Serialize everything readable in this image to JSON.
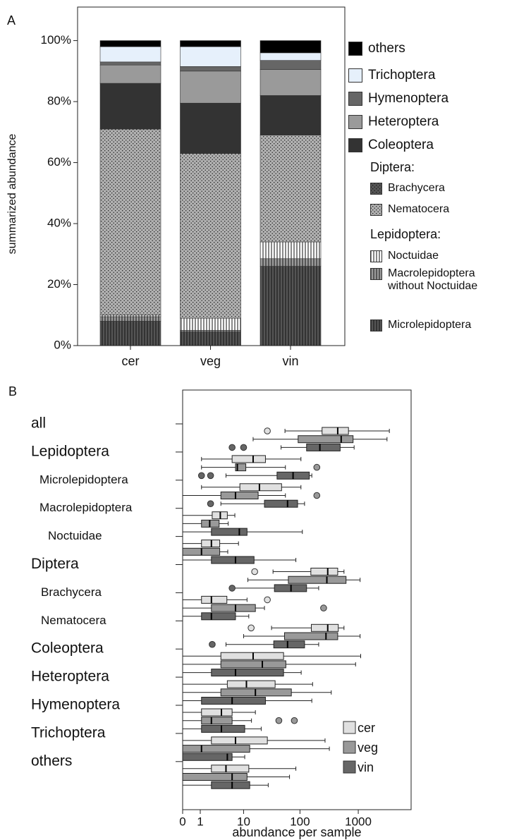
{
  "chart_data": [
    {
      "type": "stacked_bar",
      "panel_label": "A",
      "ylabel": "summarized abundance",
      "categories": [
        "cer",
        "veg",
        "vin"
      ],
      "ylim": [
        0,
        111
      ],
      "yticks": [
        {
          "value": 0,
          "label": "0%"
        },
        {
          "value": 20,
          "label": "20%"
        },
        {
          "value": 40,
          "label": "40%"
        },
        {
          "value": 60,
          "label": "60%"
        },
        {
          "value": 80,
          "label": "80%"
        },
        {
          "value": 100,
          "label": "100%"
        }
      ],
      "legend_headings": [
        "Diptera:",
        "Lepidoptera:"
      ],
      "series": [
        {
          "name": "Microlepidoptera",
          "color": "#555555",
          "pattern": "vlines",
          "values": [
            8,
            4.5,
            26
          ]
        },
        {
          "name": "Macrolepidoptera without Noctuidae",
          "color": "#9a9a9a",
          "pattern": "vlines",
          "values": [
            1.5,
            0.5,
            2.5
          ]
        },
        {
          "name": "Noctuidae",
          "color": "#ffffff",
          "pattern": "vlines",
          "values": [
            0.5,
            4,
            5.5
          ]
        },
        {
          "name": "Nematocera",
          "color": "#b0b0b0",
          "pattern": "dots",
          "values": [
            61,
            54,
            35
          ]
        },
        {
          "name": "Brachycera",
          "color": "#555555",
          "pattern": "dots",
          "values": [
            0,
            0,
            0
          ]
        },
        {
          "name": "Coleoptera",
          "color": "#333333",
          "pattern": null,
          "values": [
            15,
            16.5,
            13
          ]
        },
        {
          "name": "Heteroptera",
          "color": "#9a9a9a",
          "pattern": null,
          "values": [
            6,
            10.5,
            8.5
          ]
        },
        {
          "name": "Hymenoptera",
          "color": "#666666",
          "pattern": null,
          "values": [
            1,
            1.5,
            3
          ]
        },
        {
          "name": "Trichoptera",
          "color": "#e6f0fb",
          "pattern": null,
          "values": [
            5,
            6.5,
            2.5
          ]
        },
        {
          "name": "others",
          "color": "#000000",
          "pattern": null,
          "values": [
            2,
            2,
            4
          ]
        }
      ]
    },
    {
      "type": "box",
      "panel_label": "B",
      "xlabel": "abundance per sample",
      "xscale": "log1p",
      "xlim": [
        0,
        8000
      ],
      "xticks": [
        0,
        1,
        10,
        100,
        1000
      ],
      "legend": "lower right",
      "categories": [
        "all",
        "Lepidoptera",
        "Microlepidoptera",
        "Macrolepidoptera",
        "Noctuidae",
        "Diptera",
        "Brachycera",
        "Nematocera",
        "Coleoptera",
        "Heteroptera",
        "Hymenoptera",
        "Trichoptera",
        "others"
      ],
      "series": [
        {
          "name": "cer",
          "color": "#e0e0e0",
          "boxes": [
            {
              "whislo": 55,
              "q1": 240,
              "med": 445,
              "q3": 680,
              "whishi": 3400,
              "fliers": [
                27
              ]
            },
            {
              "whislo": 1.1,
              "q1": 6,
              "med": 15,
              "q3": 25,
              "whishi": 104,
              "fliers": []
            },
            {
              "whislo": 1.1,
              "q1": 8.5,
              "med": 19.5,
              "q3": 48,
              "whishi": 104,
              "fliers": []
            },
            {
              "whislo": 0,
              "q1": 2.2,
              "med": 3.4,
              "q3": 4.8,
              "whishi": 6.8,
              "fliers": []
            },
            {
              "whislo": 0,
              "q1": 1.1,
              "med": 2.1,
              "q3": 3.3,
              "whishi": 8,
              "fliers": []
            },
            {
              "whislo": 34,
              "q1": 154,
              "med": 300,
              "q3": 445,
              "whishi": 570,
              "fliers": [
                16
              ]
            },
            {
              "whislo": 0,
              "q1": 1.1,
              "med": 2.1,
              "q3": 4.7,
              "whishi": 11.6,
              "fliers": [
                27
              ]
            },
            {
              "whislo": 32,
              "q1": 157,
              "med": 300,
              "q3": 455,
              "whishi": 570,
              "fliers": [
                13.8
              ]
            },
            {
              "whislo": 0,
              "q1": 3.5,
              "med": 15,
              "q3": 52,
              "whishi": 1100,
              "fliers": []
            },
            {
              "whislo": 0,
              "q1": 4.8,
              "med": 11.3,
              "q3": 37,
              "whishi": 165,
              "fliers": []
            },
            {
              "whislo": 0,
              "q1": 1.1,
              "med": 3.6,
              "q3": 6,
              "whishi": 16.5,
              "fliers": []
            },
            {
              "whislo": 0,
              "q1": 2.1,
              "med": 7,
              "q3": 27,
              "whishi": 270,
              "fliers": []
            },
            {
              "whislo": 0,
              "q1": 2.1,
              "med": 4.5,
              "q3": 12.5,
              "whishi": 85,
              "fliers": []
            }
          ]
        },
        {
          "name": "veg",
          "color": "#999999",
          "boxes": [
            {
              "whislo": 15,
              "q1": 93,
              "med": 510,
              "q3": 815,
              "whishi": 3100,
              "fliers": []
            },
            {
              "whislo": 1.1,
              "q1": 7,
              "med": 7.6,
              "q3": 11,
              "whishi": 56,
              "fliers": [
                195
              ]
            },
            {
              "whislo": 0,
              "q1": 3.5,
              "med": 7,
              "q3": 18.5,
              "whishi": 56,
              "fliers": [
                195
              ]
            },
            {
              "whislo": 0,
              "q1": 1.1,
              "med": 1.9,
              "q3": 3.2,
              "whishi": 5,
              "fliers": []
            },
            {
              "whislo": 0,
              "q1": 0,
              "med": 1.1,
              "q3": 3.3,
              "whishi": 4.9,
              "fliers": []
            },
            {
              "whislo": 12,
              "q1": 63,
              "med": 290,
              "q3": 618,
              "whishi": 1075,
              "fliers": []
            },
            {
              "whislo": 0,
              "q1": 2.1,
              "med": 7,
              "q3": 16.5,
              "whishi": 24,
              "fliers": [
                255
              ]
            },
            {
              "whislo": 10,
              "q1": 54,
              "med": 280,
              "q3": 445,
              "whishi": 1075,
              "fliers": []
            },
            {
              "whislo": 0,
              "q1": 3.5,
              "med": 22,
              "q3": 57,
              "whishi": 900,
              "fliers": []
            },
            {
              "whislo": 0,
              "q1": 3.5,
              "med": 16.5,
              "q3": 71,
              "whishi": 345,
              "fliers": []
            },
            {
              "whislo": 0,
              "q1": 1.1,
              "med": 2.1,
              "q3": 6,
              "whishi": 14,
              "fliers": [
                43,
                80
              ]
            },
            {
              "whislo": 0,
              "q1": 0,
              "med": 1.1,
              "q3": 13,
              "whishi": 320,
              "fliers": []
            },
            {
              "whislo": 0,
              "q1": 0,
              "med": 6,
              "q3": 11.6,
              "whishi": 66,
              "fliers": []
            }
          ]
        },
        {
          "name": "vin",
          "color": "#666666",
          "boxes": [
            {
              "whislo": 47,
              "q1": 130,
              "med": 220,
              "q3": 490,
              "whishi": 850,
              "fliers": [
                6,
                10
              ]
            },
            {
              "whislo": 4.5,
              "q1": 40,
              "med": 76,
              "q3": 145,
              "whishi": 160,
              "fliers": [
                1.1,
                2
              ]
            },
            {
              "whislo": 3.5,
              "q1": 24,
              "med": 61,
              "q3": 91,
              "whishi": 120,
              "fliers": [
                2
              ]
            },
            {
              "whislo": 0,
              "q1": 2.1,
              "med": 8.3,
              "q3": 11.6,
              "whishi": 110,
              "fliers": []
            },
            {
              "whislo": 0,
              "q1": 2.1,
              "med": 7,
              "q3": 15.6,
              "whishi": 85,
              "fliers": []
            },
            {
              "whislo": 6.5,
              "q1": 36,
              "med": 70,
              "q3": 130,
              "whishi": 210,
              "fliers": [
                6
              ]
            },
            {
              "whislo": 0,
              "q1": 1.1,
              "med": 2.1,
              "q3": 7,
              "whishi": 12.5,
              "fliers": []
            },
            {
              "whislo": 4.5,
              "q1": 35,
              "med": 61,
              "q3": 120,
              "whishi": 210,
              "fliers": [
                2.2
              ]
            },
            {
              "whislo": 0,
              "q1": 2.1,
              "med": 7,
              "q3": 52,
              "whishi": 105,
              "fliers": []
            },
            {
              "whislo": 0,
              "q1": 1.1,
              "med": 6,
              "q3": 25,
              "whishi": 160,
              "fliers": []
            },
            {
              "whislo": 0,
              "q1": 1.1,
              "med": 3.6,
              "q3": 10.5,
              "whishi": 21,
              "fliers": []
            },
            {
              "whislo": 0,
              "q1": 0,
              "med": 4.8,
              "q3": 6,
              "whishi": 10.5,
              "fliers": []
            },
            {
              "whislo": 0,
              "q1": 2.1,
              "med": 6,
              "q3": 13,
              "whishi": 28,
              "fliers": []
            }
          ]
        }
      ]
    }
  ]
}
